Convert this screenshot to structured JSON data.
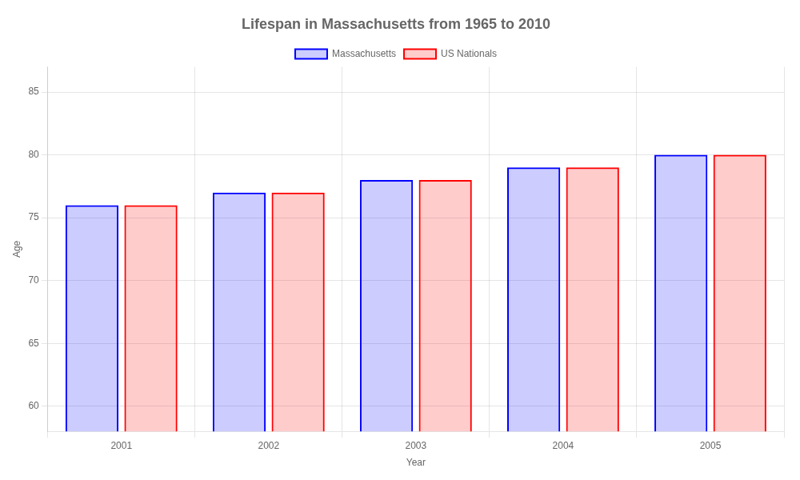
{
  "chart_data": {
    "type": "bar",
    "title": "Lifespan in Massachusetts from 1965 to 2010",
    "x_label": "Year",
    "y_label": "Age",
    "categories": [
      "2001",
      "2002",
      "2003",
      "2004",
      "2005"
    ],
    "series": [
      {
        "name": "Massachusetts",
        "color": "#0000ff",
        "values": [
          76,
          77,
          78,
          79,
          80
        ]
      },
      {
        "name": "US Nationals",
        "color": "#ff0000",
        "values": [
          76,
          77,
          78,
          79,
          80
        ]
      }
    ],
    "ylim": [
      58,
      87
    ],
    "yticks": [
      60,
      65,
      70,
      75,
      80,
      85
    ],
    "grid": true,
    "legend": "top"
  }
}
